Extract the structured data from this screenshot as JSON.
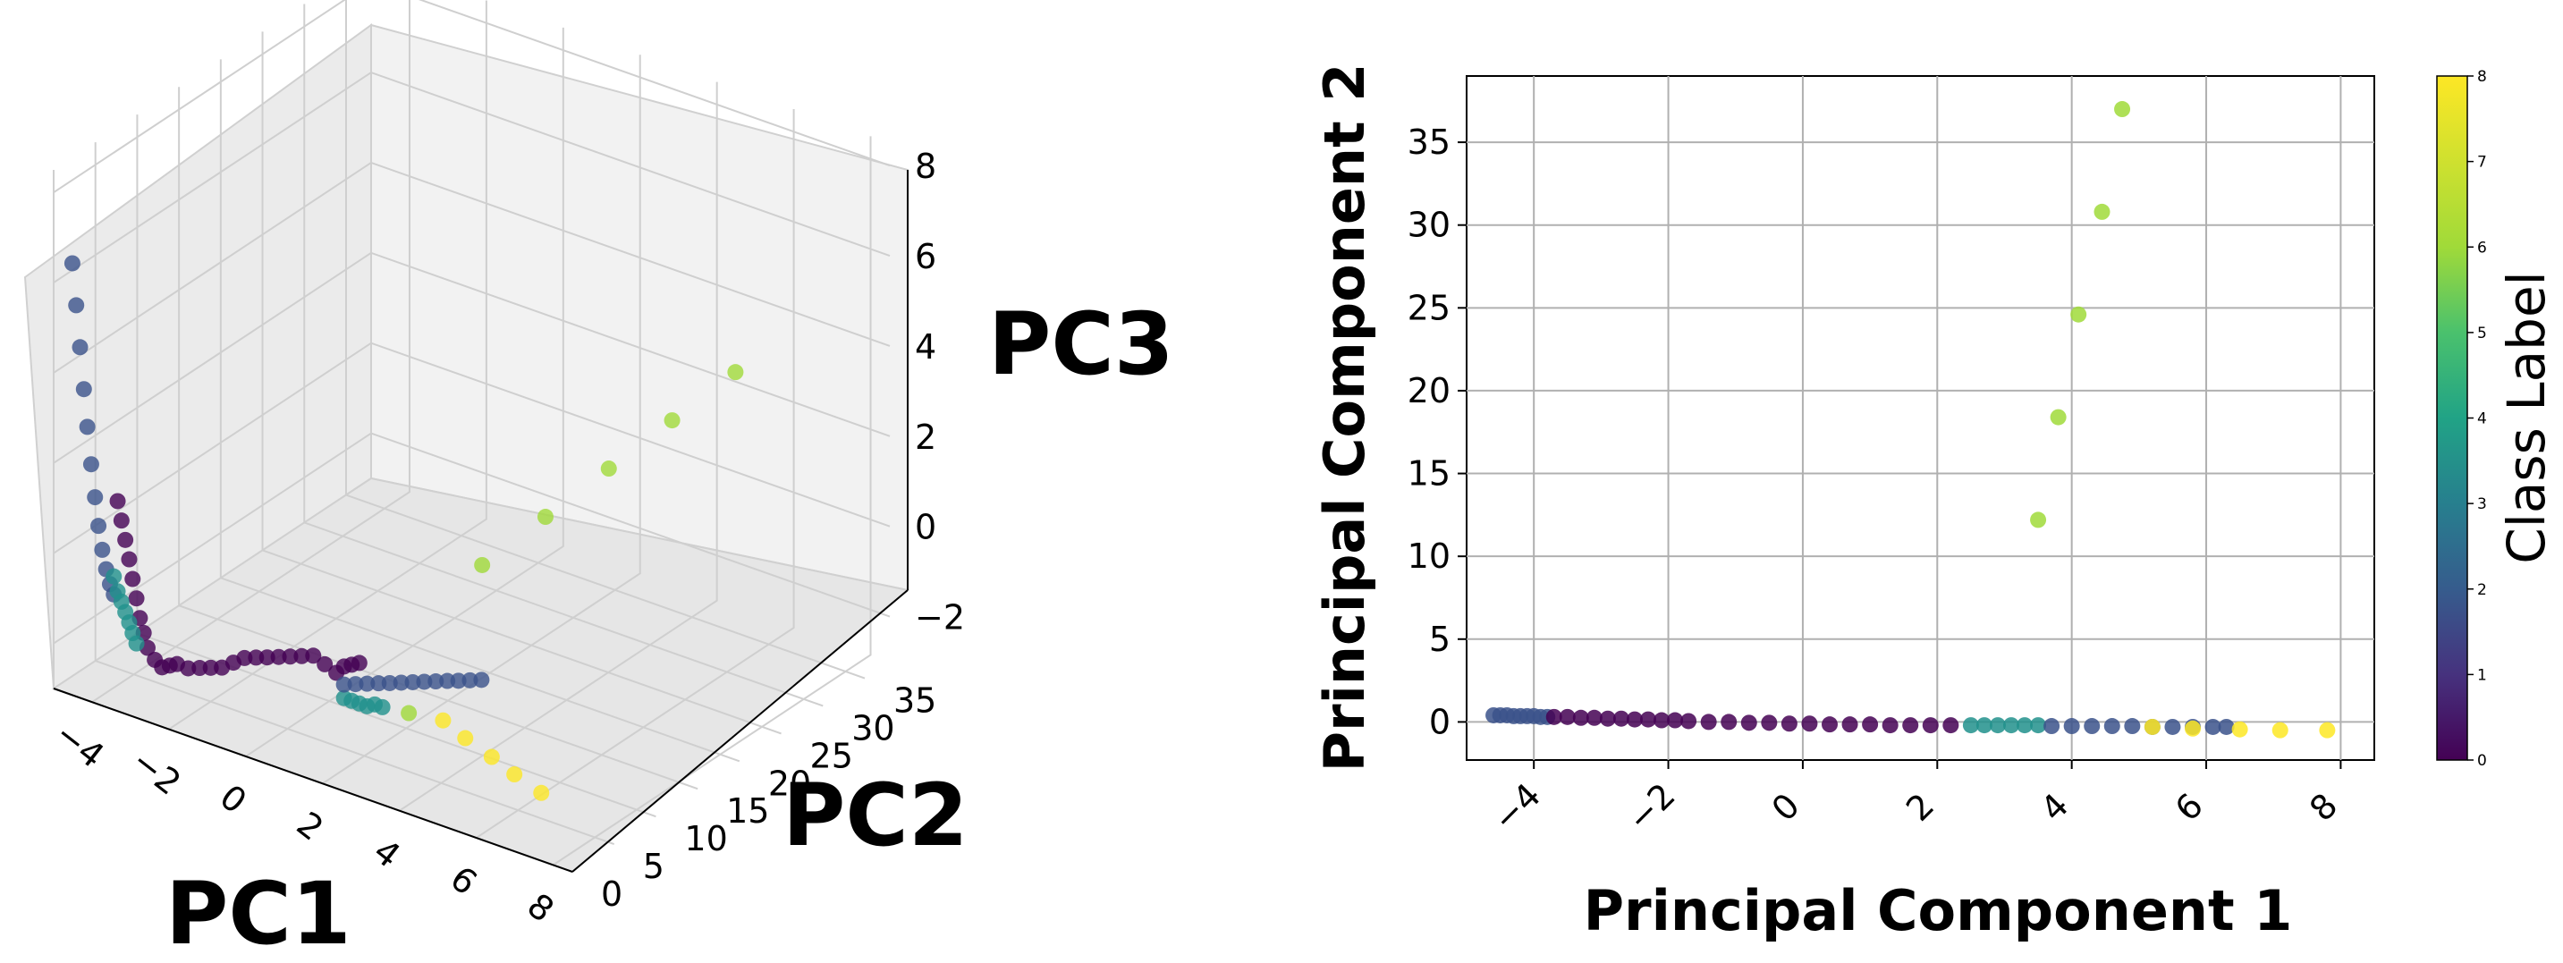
{
  "chart_data": [
    {
      "type": "scatter",
      "projection": "3d",
      "xlabel": "PC1",
      "ylabel": "PC2",
      "zlabel": "PC3",
      "x_ticks": [
        "−4",
        "−2",
        "0",
        "2",
        "4",
        "6",
        "8"
      ],
      "y_ticks": [
        "0",
        "5",
        "10",
        "15",
        "20",
        "25",
        "30",
        "35"
      ],
      "z_ticks": [
        "−2",
        "0",
        "2",
        "4",
        "6",
        "8"
      ],
      "xlim": [
        -5,
        8.5
      ],
      "ylim": [
        0,
        38
      ],
      "zlim": [
        -3,
        8.5
      ],
      "grid": true,
      "colormap": "viridis",
      "series": [
        {
          "class": 2,
          "color": "#3b528b",
          "x": [
            -4.6,
            -4.5,
            -4.4,
            -4.3,
            -4.2,
            -4.1,
            -4.0,
            -3.9,
            -3.8,
            -3.7,
            -3.6,
            -3.5
          ],
          "y": [
            0.4,
            0.4,
            0.4,
            0.4,
            0.35,
            0.35,
            0.35,
            0.3,
            0.3,
            0.3,
            0.3,
            0.3
          ],
          "z": [
            6.5,
            5.6,
            4.7,
            3.8,
            3.0,
            2.2,
            1.5,
            0.9,
            0.4,
            0.0,
            -0.3,
            -0.5
          ]
        },
        {
          "class": 0,
          "color": "#440154",
          "x": [
            -3.4,
            -3.3,
            -3.2,
            -3.1,
            -3.0,
            -2.9,
            -2.8,
            -2.7,
            -2.6,
            -2.4,
            -2.2,
            -2.0,
            -1.8,
            -1.5,
            -1.2,
            -0.9,
            -0.6,
            -0.3,
            0.0,
            0.3,
            0.6,
            0.9,
            1.2,
            1.5,
            1.8,
            2.1,
            2.4,
            2.6,
            2.8,
            3.0
          ],
          "y": [
            0.3,
            0.3,
            0.3,
            0.3,
            0.25,
            0.25,
            0.2,
            0.2,
            0.2,
            0.15,
            0.1,
            0.1,
            0.05,
            0.0,
            0.0,
            -0.05,
            -0.1,
            -0.1,
            -0.15,
            -0.15,
            -0.2,
            -0.2,
            -0.2,
            -0.2,
            -0.2,
            -0.2,
            -0.2,
            -0.2,
            -0.2,
            -0.2
          ],
          "z": [
            1.6,
            1.2,
            0.8,
            0.4,
            0.0,
            -0.4,
            -0.8,
            -1.1,
            -1.4,
            -1.6,
            -1.7,
            -1.6,
            -1.5,
            -1.5,
            -1.4,
            -1.3,
            -1.2,
            -1.0,
            -0.8,
            -0.7,
            -0.6,
            -0.5,
            -0.4,
            -0.3,
            -0.2,
            -0.3,
            -0.4,
            -0.2,
            -0.1,
            0.0
          ]
        },
        {
          "class": 5,
          "color": "#21918c",
          "x": [
            -3.5,
            -3.4,
            -3.3,
            -3.2,
            -3.1,
            -3.0,
            -2.9,
            2.6,
            2.8,
            3.0,
            3.2,
            3.4,
            3.6
          ],
          "y": [
            0.3,
            0.3,
            0.3,
            0.3,
            0.3,
            0.25,
            0.25,
            -0.2,
            -0.2,
            -0.2,
            -0.2,
            -0.2,
            -0.2
          ],
          "z": [
            -0.1,
            -0.4,
            -0.6,
            -0.8,
            -1.0,
            -1.2,
            -1.4,
            -0.9,
            -0.9,
            -0.9,
            -0.9,
            -0.8,
            -0.8
          ]
        },
        {
          "class": 2,
          "color": "#3b528b",
          "x": [
            2.6,
            2.9,
            3.2,
            3.5,
            3.8,
            4.1,
            4.4,
            4.7,
            5.0,
            5.3,
            5.6,
            5.9,
            6.2
          ],
          "y": [
            -0.2,
            -0.2,
            -0.2,
            -0.2,
            -0.25,
            -0.25,
            -0.25,
            -0.25,
            -0.25,
            -0.25,
            -0.3,
            -0.3,
            -0.3
          ],
          "z": [
            -0.6,
            -0.5,
            -0.4,
            -0.3,
            -0.2,
            -0.1,
            0.0,
            0.1,
            0.2,
            0.3,
            0.4,
            0.5,
            0.6
          ]
        },
        {
          "class": 7,
          "color": "#a0da39",
          "x": [
            3.5,
            3.8,
            4.1,
            4.4,
            4.7,
            4.2
          ],
          "y": [
            12.2,
            18.4,
            24.6,
            30.8,
            37.0,
            0.2
          ],
          "z": [
            0.8,
            1.2,
            1.6,
            2.0,
            2.4,
            -0.8
          ]
        },
        {
          "class": 8,
          "color": "#fde725",
          "x": [
            5.2,
            5.8,
            6.5,
            7.1,
            7.8
          ],
          "y": [
            -0.3,
            -0.4,
            -0.45,
            -0.5,
            -0.5
          ],
          "z": [
            -0.6,
            -0.8,
            -1.0,
            -1.2,
            -1.4
          ]
        }
      ]
    },
    {
      "type": "scatter",
      "xlabel": "Principal Component 1",
      "ylabel": "Principal Component 2",
      "xlim": [
        -5,
        8.5
      ],
      "ylim": [
        -2.3,
        39
      ],
      "x_ticks": [
        "−4",
        "−2",
        "0",
        "2",
        "4",
        "6",
        "8"
      ],
      "y_ticks": [
        "0",
        "5",
        "10",
        "15",
        "20",
        "25",
        "30",
        "35"
      ],
      "grid": true,
      "colormap": "viridis",
      "colorbar": {
        "label": "Class Label",
        "min": 0,
        "max": 8,
        "ticks": [
          "0",
          "1",
          "2",
          "3",
          "4",
          "5",
          "6",
          "7",
          "8"
        ]
      },
      "series": [
        {
          "class": 2,
          "color": "#3b528b",
          "x": [
            -4.6,
            -4.5,
            -4.4,
            -4.3,
            -4.2,
            -4.1,
            -4.0,
            -3.9,
            -3.8
          ],
          "y": [
            0.4,
            0.4,
            0.4,
            0.35,
            0.35,
            0.35,
            0.35,
            0.3,
            0.3
          ]
        },
        {
          "class": 0,
          "color": "#440154",
          "x": [
            -3.7,
            -3.5,
            -3.3,
            -3.1,
            -2.9,
            -2.7,
            -2.5,
            -2.3,
            -2.1,
            -1.9,
            -1.7,
            -1.4,
            -1.1,
            -0.8,
            -0.5,
            -0.2,
            0.1,
            0.4,
            0.7,
            1.0,
            1.3,
            1.6,
            1.9,
            2.2
          ],
          "y": [
            0.3,
            0.3,
            0.25,
            0.25,
            0.2,
            0.2,
            0.15,
            0.15,
            0.1,
            0.1,
            0.05,
            0.0,
            0.0,
            -0.05,
            -0.05,
            -0.1,
            -0.1,
            -0.15,
            -0.15,
            -0.15,
            -0.2,
            -0.2,
            -0.2,
            -0.2
          ]
        },
        {
          "class": 5,
          "color": "#21918c",
          "x": [
            2.5,
            2.7,
            2.9,
            3.1,
            3.3,
            3.5
          ],
          "y": [
            -0.2,
            -0.2,
            -0.2,
            -0.2,
            -0.2,
            -0.2
          ]
        },
        {
          "class": 2,
          "color": "#3b528b",
          "x": [
            3.7,
            4.0,
            4.3,
            4.6,
            4.9,
            5.2,
            5.5,
            5.8,
            6.1,
            6.3
          ],
          "y": [
            -0.25,
            -0.25,
            -0.25,
            -0.25,
            -0.25,
            -0.3,
            -0.3,
            -0.3,
            -0.3,
            -0.3
          ]
        },
        {
          "class": 7,
          "color": "#a0da39",
          "x": [
            3.5,
            3.8,
            4.1,
            4.45,
            4.75
          ],
          "y": [
            12.2,
            18.4,
            24.6,
            30.8,
            37.0
          ]
        },
        {
          "class": 8,
          "color": "#fde725",
          "x": [
            5.2,
            5.8,
            6.5,
            7.1,
            7.8
          ],
          "y": [
            -0.3,
            -0.4,
            -0.45,
            -0.5,
            -0.5
          ]
        }
      ]
    }
  ]
}
